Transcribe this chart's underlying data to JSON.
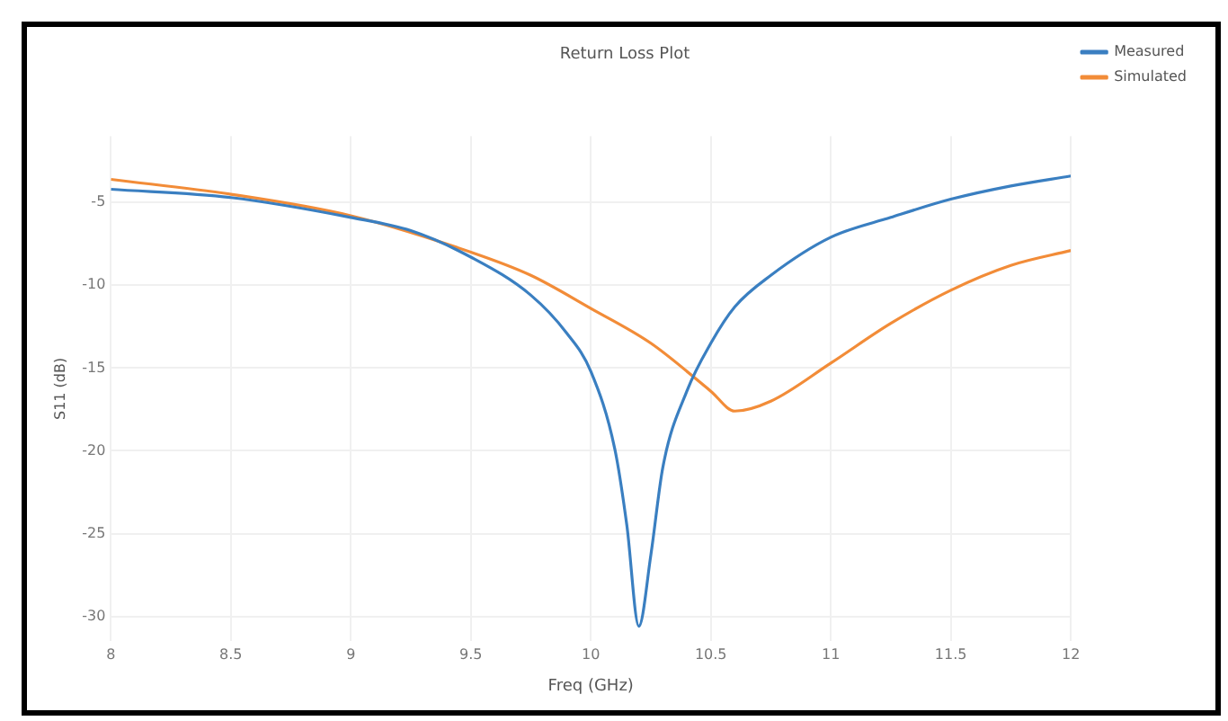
{
  "chart_data": {
    "type": "line",
    "title": "Return Loss Plot",
    "xlabel": "Freq (GHz)",
    "ylabel": "S11 (dB)",
    "xlim": [
      8,
      12
    ],
    "xticks": [
      8,
      8.5,
      9,
      9.5,
      10,
      10.5,
      11,
      11.5,
      12
    ],
    "ylim": [
      -31.5,
      -1
    ],
    "yticks": [
      -5,
      -10,
      -15,
      -20,
      -25,
      -30
    ],
    "grid": true,
    "legend": "right",
    "marker": "none",
    "line_style": "solid",
    "series": [
      {
        "name": "Measured",
        "color": "#3a7fc1",
        "x": [
          8,
          8.5,
          9,
          9.25,
          9.5,
          9.75,
          9.9,
          10,
          10.1,
          10.15,
          10.2,
          10.25,
          10.3,
          10.4,
          10.5,
          10.6,
          10.75,
          11,
          11.25,
          11.5,
          11.75,
          12
        ],
        "values": [
          -4.2,
          -4.7,
          -5.9,
          -6.7,
          -8.3,
          -10.6,
          -12.9,
          -15.2,
          -19.9,
          -24.5,
          -30.6,
          -26.3,
          -21,
          -16.4,
          -13.5,
          -11.3,
          -9.4,
          -7.1,
          -5.9,
          -4.8,
          -4,
          -3.4
        ]
      },
      {
        "name": "Simulated",
        "color": "#f28c38",
        "x": [
          8,
          8.5,
          9,
          9.5,
          9.75,
          10,
          10.25,
          10.5,
          10.6,
          10.75,
          11,
          11.25,
          11.5,
          11.75,
          12
        ],
        "values": [
          -3.6,
          -4.5,
          -5.8,
          -8,
          -9.4,
          -11.4,
          -13.5,
          -16.4,
          -17.6,
          -17,
          -14.7,
          -12.3,
          -10.3,
          -8.8,
          -7.9
        ]
      }
    ]
  }
}
